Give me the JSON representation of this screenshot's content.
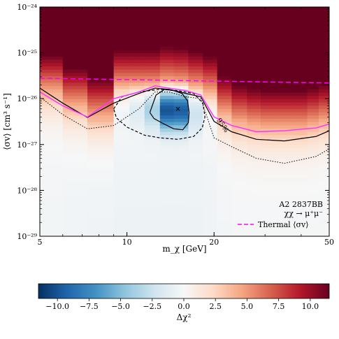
{
  "chart_data": {
    "type": "heatmap",
    "title": "",
    "xlabel": "m_χ [GeV]",
    "ylabel": "⟨σv⟩ [cm³ s⁻¹]",
    "x_scale": "log",
    "y_scale": "log",
    "xlim": [
      5,
      50
    ],
    "ylim": [
      1e-29,
      1e-24
    ],
    "x_ticks": [
      5,
      10,
      20,
      50
    ],
    "x_tick_labels": [
      "5",
      "10",
      "20",
      "50"
    ],
    "y_ticks": [
      1e-29,
      1e-28,
      1e-27,
      1e-26,
      1e-25,
      1e-24
    ],
    "y_tick_labels": [
      "10⁻²⁹",
      "10⁻²⁸",
      "10⁻²⁷",
      "10⁻²⁶",
      "10⁻²⁵",
      "10⁻²⁴"
    ],
    "annotation": {
      "cluster": "A2 2837BB",
      "channel": "χχ → μ⁺μ⁻",
      "contour_label": "95%"
    },
    "legend": {
      "position": "bottom-right",
      "entries": [
        {
          "label": "Thermal ⟨σv⟩",
          "color": "#ff00ff",
          "style": "dashed"
        }
      ]
    },
    "best_fit_marker": {
      "mass": 15.0,
      "sigmav": 6e-27
    },
    "colorbar": {
      "label": "Δχ²",
      "range": [
        -11.5,
        11.5
      ],
      "ticks": [
        -10.0,
        -7.5,
        -5.0,
        -2.5,
        0.0,
        2.5,
        5.0,
        7.5,
        10.0
      ],
      "tick_labels": [
        "−10.0",
        "−7.5",
        "−5.0",
        "−2.5",
        "0.0",
        "2.5",
        "5.0",
        "7.5",
        "10.0"
      ]
    },
    "colors": {
      "negative": "#053061",
      "neutral": "#f7f7f7",
      "positive": "#67001f",
      "thermal": "#ff00ff",
      "limit_95": "#ff33ff"
    },
    "thermal_line": {
      "x": [
        5,
        50
      ],
      "y": [
        2.8e-26,
        2.2e-26
      ]
    },
    "limit_95_line": {
      "x": [
        5,
        6,
        7.3,
        9,
        11,
        12.5,
        14,
        16,
        18,
        20,
        23,
        28,
        35,
        45,
        50
      ],
      "y": [
        1.4e-26,
        7e-27,
        4e-27,
        1e-26,
        1.4e-26,
        1.9e-26,
        1.7e-26,
        1.5e-26,
        1.2e-26,
        4e-27,
        2.6e-27,
        1.9e-27,
        2e-27,
        2.3e-27,
        2.8e-27
      ]
    },
    "contour_95": {
      "x": [
        5,
        6,
        7.3,
        9,
        11,
        12.5,
        14,
        16,
        18,
        20,
        23,
        28,
        35,
        45,
        50
      ],
      "y": [
        1.7e-26,
        8e-27,
        3.9e-27,
        8e-27,
        1.3e-26,
        1.7e-26,
        1.6e-26,
        1.3e-26,
        1.1e-26,
        3.2e-27,
        1.9e-27,
        1.3e-27,
        1.2e-27,
        1.5e-27,
        2e-27
      ]
    },
    "contour_99": {
      "x": [
        5,
        6,
        7.3,
        9,
        11,
        12.5,
        14,
        16,
        18,
        20,
        23,
        28,
        35,
        45,
        50
      ],
      "y": [
        1.1e-26,
        4.5e-27,
        2.2e-27,
        2.6e-27,
        6e-27,
        1.4e-26,
        1.4e-26,
        1.1e-26,
        1e-26,
        1.4e-27,
        9e-28,
        5e-28,
        3.9e-28,
        5.5e-28,
        8e-28
      ]
    },
    "detection_1sigma": {
      "x": [
        12.0,
        12.6,
        13.5,
        14.5,
        15.5,
        16.2,
        16.4,
        16.3,
        15.6,
        14.5,
        13.3,
        12.4,
        12.0
      ],
      "y": [
        5e-27,
        1.2e-26,
        1.6e-26,
        1.5e-26,
        1.3e-26,
        9e-27,
        5e-27,
        3e-27,
        2.1e-27,
        2.2e-27,
        2.9e-27,
        3.7e-27,
        5e-27
      ]
    },
    "detection_2sigma": {
      "x": [
        9.0,
        9.6,
        11.0,
        13.0,
        15.0,
        17.0,
        18.3,
        18.6,
        18.2,
        17.0,
        15.0,
        13.0,
        11.5,
        10.0,
        9.2,
        9.0
      ],
      "y": [
        6e-27,
        1.1e-26,
        1.4e-26,
        1.6e-26,
        1.5e-26,
        1.3e-26,
        8e-27,
        4e-27,
        2.3e-27,
        1.5e-27,
        1.3e-27,
        1.4e-27,
        1.6e-27,
        2.4e-27,
        3.8e-27,
        6e-27
      ]
    },
    "heatmap_mass_bins": [
      5,
      6,
      7.3,
      9,
      10.2,
      11.5,
      13,
      14.5,
      16.3,
      18.3,
      20.5,
      23,
      26,
      29,
      33,
      37.5,
      42,
      46,
      50
    ],
    "heatmap_columns": [
      {
        "floor": 1.2e-26,
        "base": -0.3,
        "dip_center": 0,
        "dip_width": 1,
        "dip_depth": 0
      },
      {
        "floor": 6e-27,
        "base": -0.4,
        "dip_center": 0,
        "dip_width": 1,
        "dip_depth": 0
      },
      {
        "floor": 3.5e-27,
        "base": -0.5,
        "dip_center": 0,
        "dip_width": 1,
        "dip_depth": 0
      },
      {
        "floor": 1.5e-26,
        "base": -0.6,
        "dip_center": 8e-27,
        "dip_width": 0.5,
        "dip_depth": -1.5
      },
      {
        "floor": 1.5e-26,
        "base": -0.6,
        "dip_center": 8e-27,
        "dip_width": 0.5,
        "dip_depth": -2.8
      },
      {
        "floor": 1.5e-26,
        "base": -0.6,
        "dip_center": 7e-27,
        "dip_width": 0.5,
        "dip_depth": -5.0
      },
      {
        "floor": 1.8e-26,
        "base": -0.6,
        "dip_center": 6e-27,
        "dip_width": 0.45,
        "dip_depth": -10.8
      },
      {
        "floor": 1.7e-26,
        "base": -0.6,
        "dip_center": 6e-27,
        "dip_width": 0.45,
        "dip_depth": -10.5
      },
      {
        "floor": 1.4e-26,
        "base": -0.6,
        "dip_center": 6e-27,
        "dip_width": 0.5,
        "dip_depth": -3.5
      },
      {
        "floor": 1.1e-26,
        "base": -0.5,
        "dip_center": 6e-27,
        "dip_width": 0.5,
        "dip_depth": -1.2
      },
      {
        "floor": 4e-27,
        "base": -0.3,
        "dip_center": 0,
        "dip_width": 1,
        "dip_depth": 0
      },
      {
        "floor": 2.6e-27,
        "base": -0.2,
        "dip_center": 0,
        "dip_width": 1,
        "dip_depth": 0
      },
      {
        "floor": 2.2e-27,
        "base": -0.2,
        "dip_center": 0,
        "dip_width": 1,
        "dip_depth": 0
      },
      {
        "floor": 2e-27,
        "base": -0.2,
        "dip_center": 0,
        "dip_width": 1,
        "dip_depth": 0
      },
      {
        "floor": 2e-27,
        "base": -0.2,
        "dip_center": 0,
        "dip_width": 1,
        "dip_depth": 0
      },
      {
        "floor": 2e-27,
        "base": -0.2,
        "dip_center": 0,
        "dip_width": 1,
        "dip_depth": 0
      },
      {
        "floor": 2.3e-27,
        "base": -0.2,
        "dip_center": 0,
        "dip_width": 1,
        "dip_depth": 0
      },
      {
        "floor": 2.7e-27,
        "base": -0.2,
        "dip_center": 0,
        "dip_width": 1,
        "dip_depth": 0
      }
    ]
  }
}
